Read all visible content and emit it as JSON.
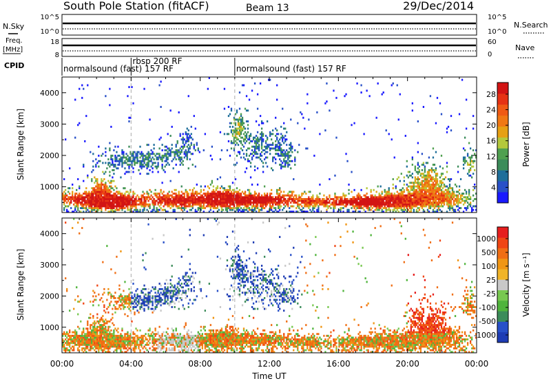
{
  "header": {
    "station": "South Pole Station (fitACF)",
    "beam": "Beam 13",
    "date": "29/Dec/2014"
  },
  "status_panels": {
    "nsky_label": "N.Sky",
    "nsearch_label": "N.Search",
    "freq_label_line1": "Freq.",
    "freq_label_line2": "[MHz]",
    "nave_label": "Nave",
    "cpid_label": "CPID",
    "nsky_ticks": [
      "10^5",
      "10^0"
    ],
    "nsearch_ticks": [
      "10^5",
      "10^0"
    ],
    "freq_ticks": [
      "18",
      "8"
    ],
    "nave_ticks": [
      "60",
      "0"
    ],
    "cpid_segments": [
      {
        "label": "normalsound (fast) 157 RF",
        "start_hour": 0
      },
      {
        "label": "rbsp 200 RF",
        "start_hour": 4
      },
      {
        "label": "normalsound (fast) 157 RF",
        "start_hour": 10
      }
    ]
  },
  "chart_data": [
    {
      "type": "heatmap",
      "name": "power-panel",
      "ylabel": "Slant Range [km]",
      "xlabel": "",
      "xlim": [
        0,
        24
      ],
      "ylim": [
        180,
        4500
      ],
      "y_ticks": [
        1000,
        2000,
        3000,
        4000
      ],
      "colorbar": {
        "label": "Power [dB]",
        "tick_labels": [
          "4",
          "8",
          "12",
          "16",
          "20",
          "24",
          "28"
        ],
        "colors": [
          "#1a1aff",
          "#2850c8",
          "#1e6e9a",
          "#3c8c5a",
          "#50a050",
          "#b4c83c",
          "#e6a014",
          "#f07814",
          "#f05a14",
          "#e63214",
          "#d21414"
        ]
      }
    },
    {
      "type": "heatmap",
      "name": "velocity-panel",
      "ylabel": "Slant Range [km]",
      "xlabel": "Time UT",
      "xlim": [
        0,
        24
      ],
      "ylim": [
        180,
        4500
      ],
      "y_ticks": [
        1000,
        2000,
        3000,
        4000
      ],
      "x_tick_labels": [
        "00:00",
        "04:00",
        "08:00",
        "12:00",
        "16:00",
        "20:00",
        "00:00"
      ],
      "colorbar": {
        "label": "Velocity [m s⁻¹]",
        "tick_labels": [
          "1000",
          "500",
          "100",
          "25",
          "-25",
          "-100",
          "-500",
          "-1000"
        ],
        "colors": [
          "#1e3cb4",
          "#2850c8",
          "#3c8c5a",
          "#50b43c",
          "#78c850",
          "#c8c8c8",
          "#f0b428",
          "#f09614",
          "#f06e14",
          "#f04614",
          "#e61e1e"
        ]
      }
    }
  ]
}
